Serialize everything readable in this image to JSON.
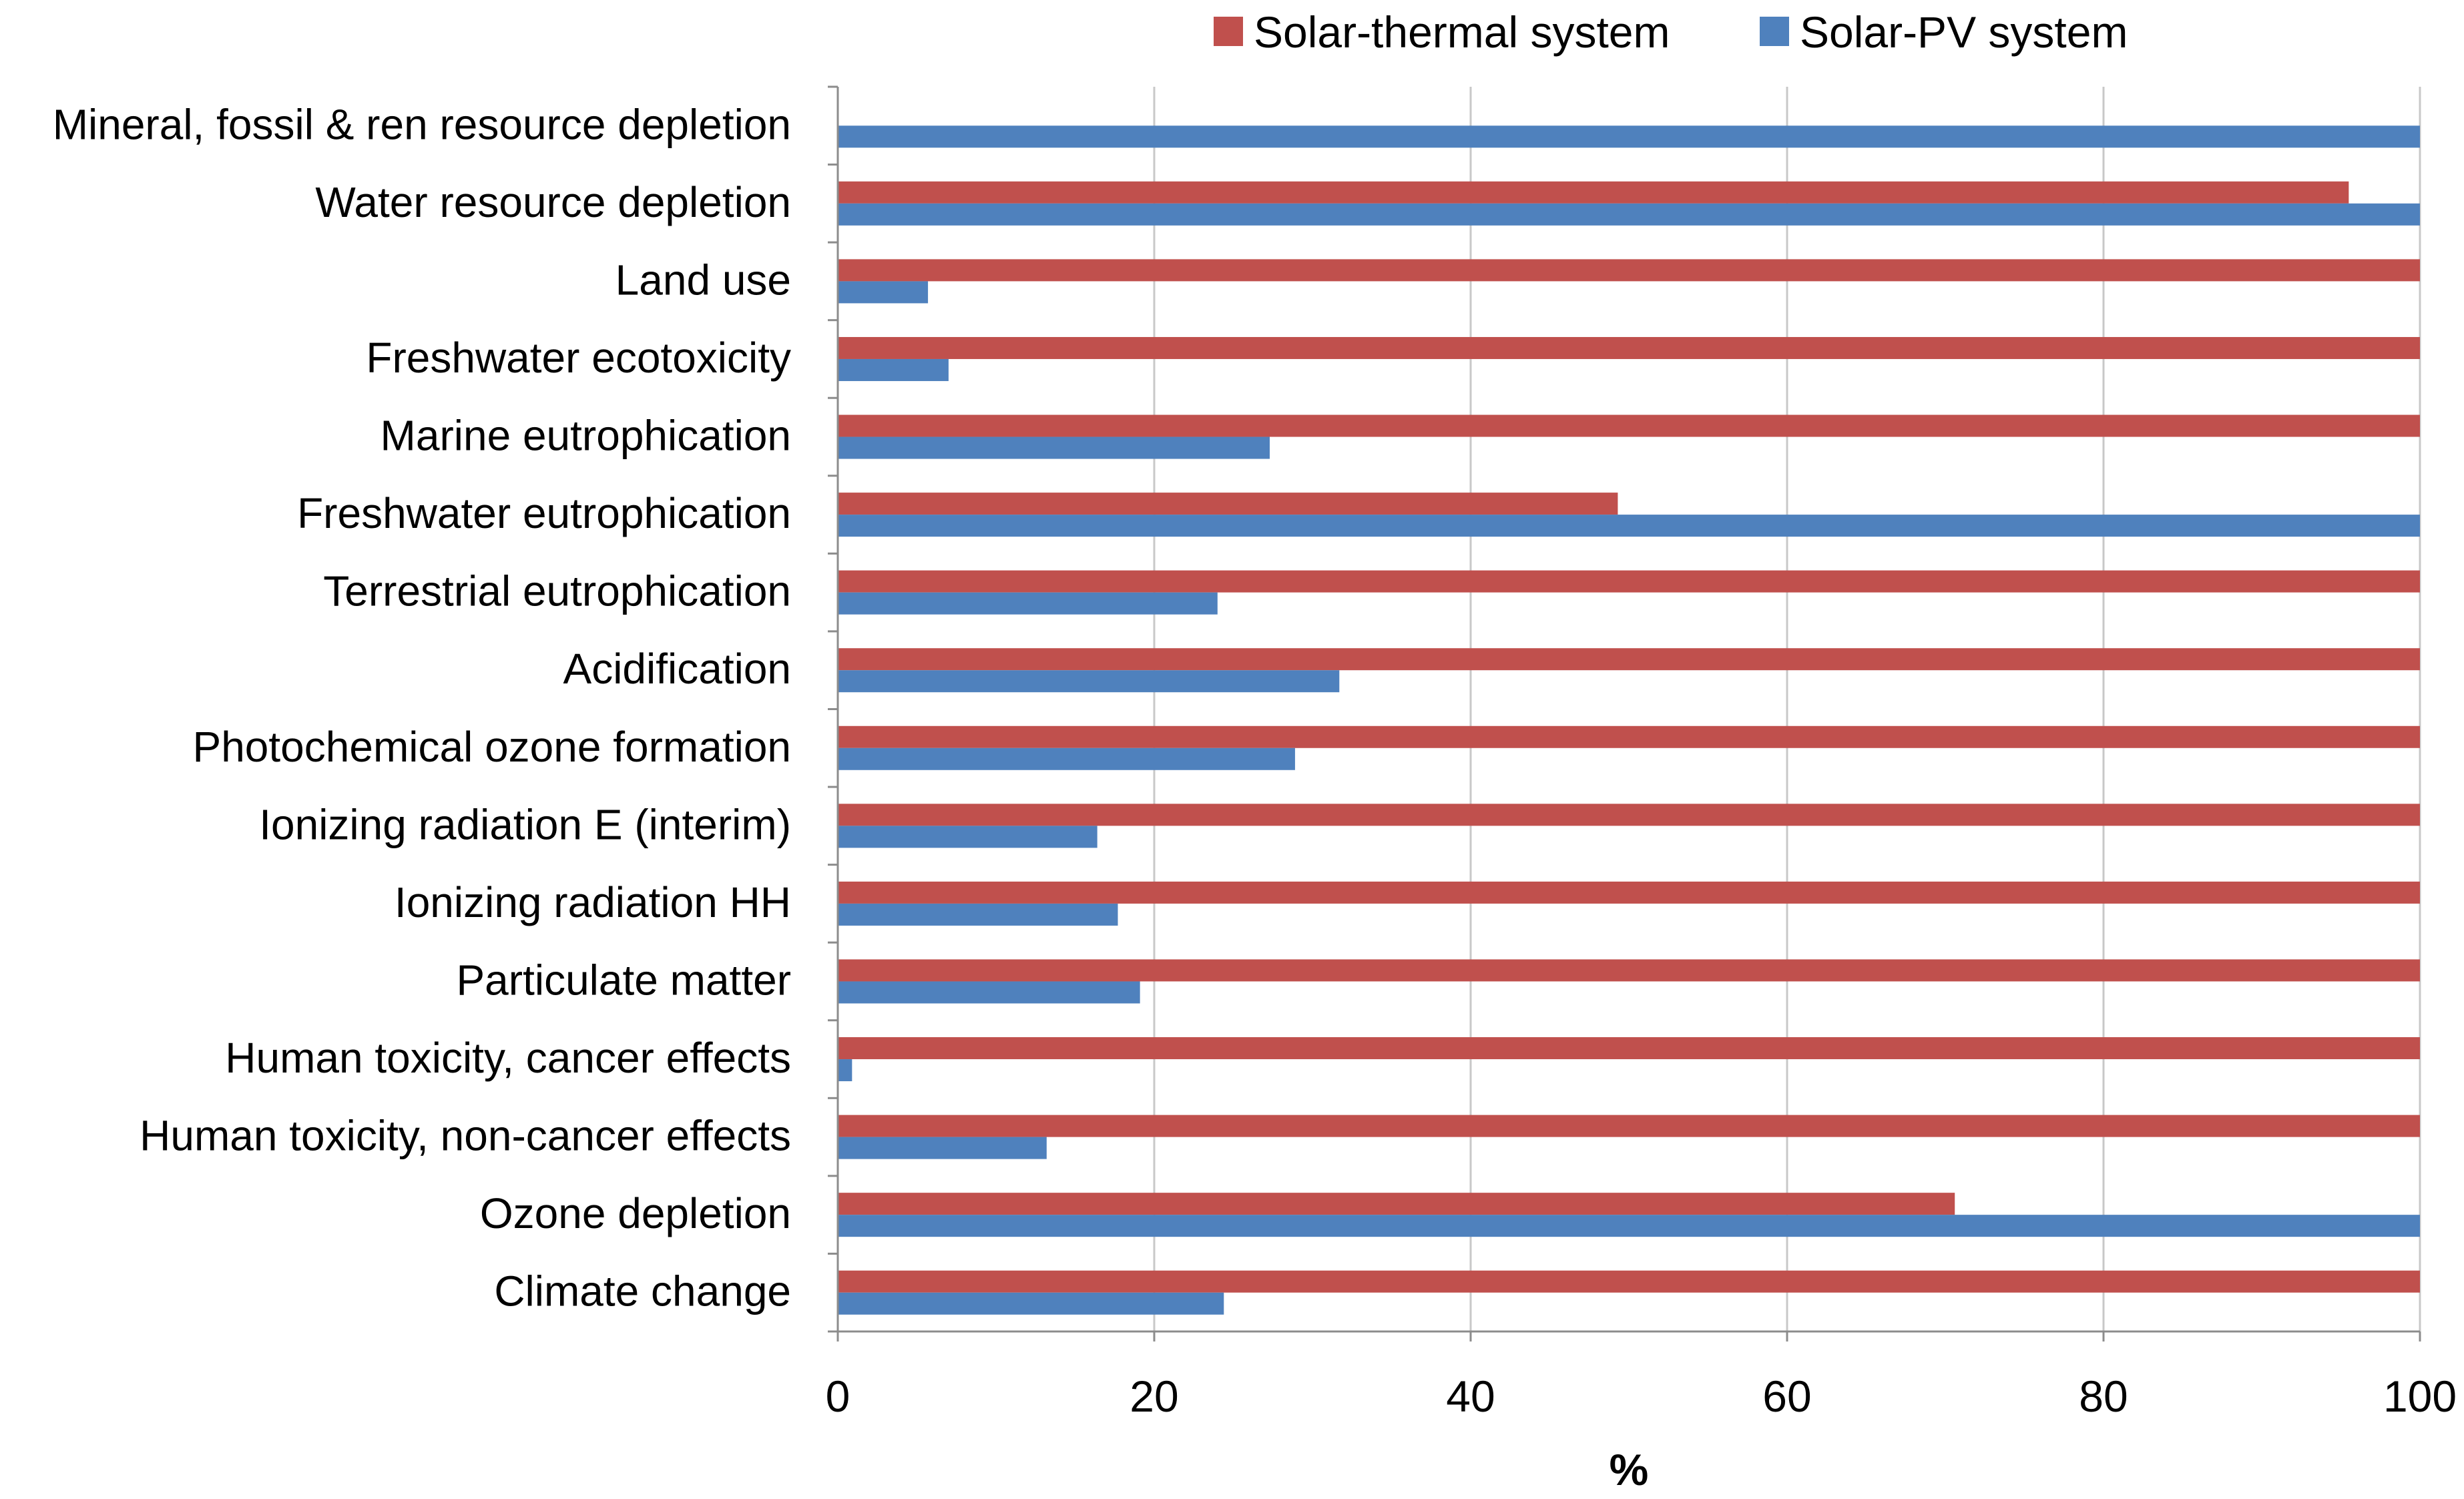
{
  "chart_data": {
    "type": "bar",
    "orientation": "horizontal",
    "title": "",
    "xlabel": "%",
    "ylabel": "",
    "xlim": [
      0,
      100
    ],
    "x_ticks": [
      0,
      20,
      40,
      60,
      80,
      100
    ],
    "grid": true,
    "legend_position": "top",
    "categories": [
      "Mineral, fossil & ren resource depletion",
      "Water resource depletion",
      "Land use",
      "Freshwater ecotoxicity",
      "Marine eutrophication",
      "Freshwater eutrophication",
      "Terrestrial eutrophication",
      "Acidification",
      "Photochemical ozone formation",
      "Ionizing radiation E (interim)",
      "Ionizing radiation HH",
      "Particulate matter",
      "Human toxicity, cancer effects",
      "Human toxicity, non-cancer effects",
      "Ozone depletion",
      "Climate change"
    ],
    "series": [
      {
        "name": "Solar-thermal system",
        "color": "#c0504d",
        "values": [
          0,
          95.5,
          100,
          100,
          100,
          49.3,
          100,
          100,
          100,
          100,
          100,
          100,
          100,
          100,
          70.6,
          100
        ]
      },
      {
        "name": "Solar-PV system",
        "color": "#4f81bd",
        "values": [
          100,
          100,
          5.7,
          7.0,
          27.3,
          100,
          24.0,
          31.7,
          28.9,
          16.4,
          17.7,
          19.1,
          0.9,
          13.2,
          100,
          24.4
        ]
      }
    ]
  },
  "colors": {
    "gridline": "#c8c8c8",
    "axis": "#8c8c8c",
    "text": "#000000"
  }
}
